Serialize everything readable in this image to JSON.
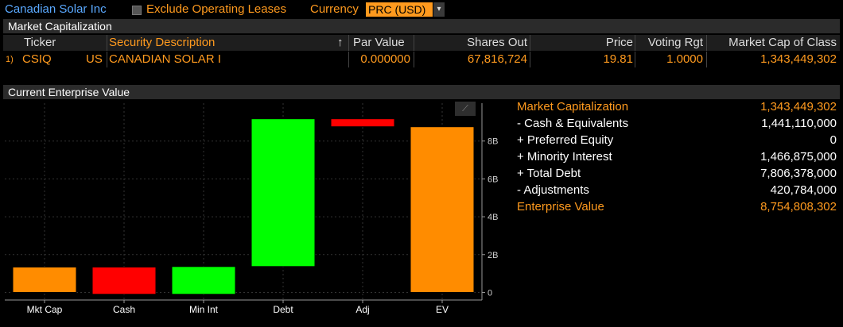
{
  "topbar": {
    "company": "Canadian Solar Inc",
    "exclude_label": "Exclude Operating Leases",
    "currency_label": "Currency",
    "currency_value": "PRC (USD)",
    "dropdown_glyph": "▾"
  },
  "market_cap_section": {
    "title": "Market Capitalization",
    "columns": [
      "Ticker",
      "Security Description",
      "Par Value",
      "Shares Out",
      "Price",
      "Voting Rgt",
      "Market Cap of Class"
    ],
    "sort_glyph": "↑",
    "row": {
      "index": "1)",
      "ticker": "CSIQ",
      "exchange": "US",
      "description": "CANADIAN SOLAR I",
      "par_value": "0.000000",
      "shares_out": "67,816,724",
      "price": "19.81",
      "voting_rgt": "1.0000",
      "market_cap": "1,343,449,302"
    }
  },
  "ev_section": {
    "title": "Current Enterprise Value",
    "edit_glyph": "⟋",
    "rows": [
      {
        "label": "Market Capitalization",
        "value": "1,343,449,302",
        "style": "orange"
      },
      {
        "label": " - Cash & Equivalents",
        "value": "1,441,110,000",
        "style": "white"
      },
      {
        "label": " + Preferred Equity",
        "value": "0",
        "style": "white"
      },
      {
        "label": " + Minority Interest",
        "value": "1,466,875,000",
        "style": "white"
      },
      {
        "label": " + Total Debt",
        "value": "7,806,378,000",
        "style": "white"
      },
      {
        "label": " - Adjustments",
        "value": "420,784,000",
        "style": "white"
      },
      {
        "label": "Enterprise Value",
        "value": "8,754,808,302",
        "style": "orange"
      }
    ]
  },
  "colors": {
    "orange": "#ff8c00",
    "red": "#ff0000",
    "green": "#00ff00",
    "accent_text": "#ff9a1e",
    "link_blue": "#5aa9ff"
  },
  "chart_data": {
    "type": "bar",
    "subtype": "waterfall",
    "categories": [
      "Mkt Cap",
      "Cash",
      "Min Int",
      "Debt",
      "Adj",
      "EV"
    ],
    "bars": [
      {
        "category": "Mkt Cap",
        "low": 0,
        "high": 1.343449302,
        "color": "orange"
      },
      {
        "category": "Cash",
        "low": -0.097660698,
        "high": 1.343449302,
        "color": "red"
      },
      {
        "category": "Min Int",
        "low": -0.097660698,
        "high": 1.369214302,
        "color": "green"
      },
      {
        "category": "Debt",
        "low": 1.369214302,
        "high": 9.175592302,
        "color": "green"
      },
      {
        "category": "Adj",
        "low": 8.754808302,
        "high": 9.175592302,
        "color": "red"
      },
      {
        "category": "EV",
        "low": 0,
        "high": 8.754808302,
        "color": "orange"
      }
    ],
    "yticks": [
      0,
      2,
      4,
      6,
      8
    ],
    "ytick_labels": [
      "0",
      "2B",
      "4B",
      "6B",
      "8B"
    ],
    "ylim": [
      -0.4,
      10.0
    ],
    "grid": true,
    "axis_side": "right"
  }
}
